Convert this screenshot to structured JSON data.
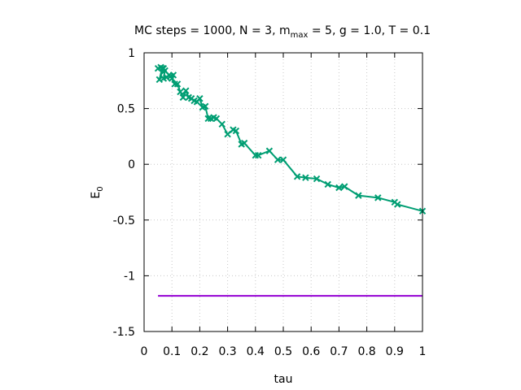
{
  "chart_data": {
    "type": "line",
    "title_parts": [
      "MC steps = 1000, N = 3, m",
      "max",
      " = 5, g = 1.0, T = 0.1"
    ],
    "xlabel": "tau",
    "ylabel_base": "E",
    "ylabel_sub": "0",
    "xlim": [
      0,
      1
    ],
    "ylim": [
      -1.5,
      1
    ],
    "xticks": [
      0,
      0.1,
      0.2,
      0.3,
      0.4,
      0.5,
      0.6,
      0.7,
      0.8,
      0.9,
      1
    ],
    "xtick_labels": [
      "0",
      "0.1",
      "0.2",
      "0.3",
      "0.4",
      "0.5",
      "0.6",
      "0.7",
      "0.8",
      "0.9",
      "1"
    ],
    "yticks": [
      1,
      0.5,
      0,
      -0.5,
      -1,
      -1.5
    ],
    "ytick_labels": [
      "1",
      "0.5",
      "0",
      "-0.5",
      "-1",
      "-1.5"
    ],
    "grid": true,
    "series": [
      {
        "color": "#009e73",
        "marker": "x",
        "x": [
          0.05,
          0.06,
          0.07,
          0.055,
          0.065,
          0.075,
          0.07,
          0.08,
          0.09,
          0.1,
          0.105,
          0.095,
          0.11,
          0.12,
          0.13,
          0.14,
          0.15,
          0.16,
          0.17,
          0.18,
          0.19,
          0.2,
          0.21,
          0.22,
          0.23,
          0.24,
          0.25,
          0.26,
          0.28,
          0.3,
          0.32,
          0.33,
          0.35,
          0.36,
          0.4,
          0.41,
          0.45,
          0.48,
          0.5,
          0.55,
          0.58,
          0.62,
          0.66,
          0.7,
          0.72,
          0.77,
          0.84,
          0.9,
          0.91,
          1.0
        ],
        "y": [
          0.86,
          0.87,
          0.86,
          0.76,
          0.86,
          0.84,
          0.77,
          0.78,
          0.8,
          0.77,
          0.8,
          0.79,
          0.72,
          0.72,
          0.65,
          0.6,
          0.66,
          0.6,
          0.59,
          0.57,
          0.56,
          0.59,
          0.51,
          0.52,
          0.41,
          0.41,
          0.42,
          0.41,
          0.36,
          0.27,
          0.31,
          0.3,
          0.18,
          0.19,
          0.08,
          0.08,
          0.12,
          0.04,
          0.04,
          -0.11,
          -0.12,
          -0.13,
          -0.18,
          -0.21,
          -0.2,
          -0.28,
          -0.3,
          -0.34,
          -0.36,
          -0.42
        ]
      },
      {
        "color": "#9400d3",
        "marker": "none",
        "x": [
          0.05,
          1.0
        ],
        "y": [
          -1.18,
          -1.18
        ]
      }
    ]
  }
}
